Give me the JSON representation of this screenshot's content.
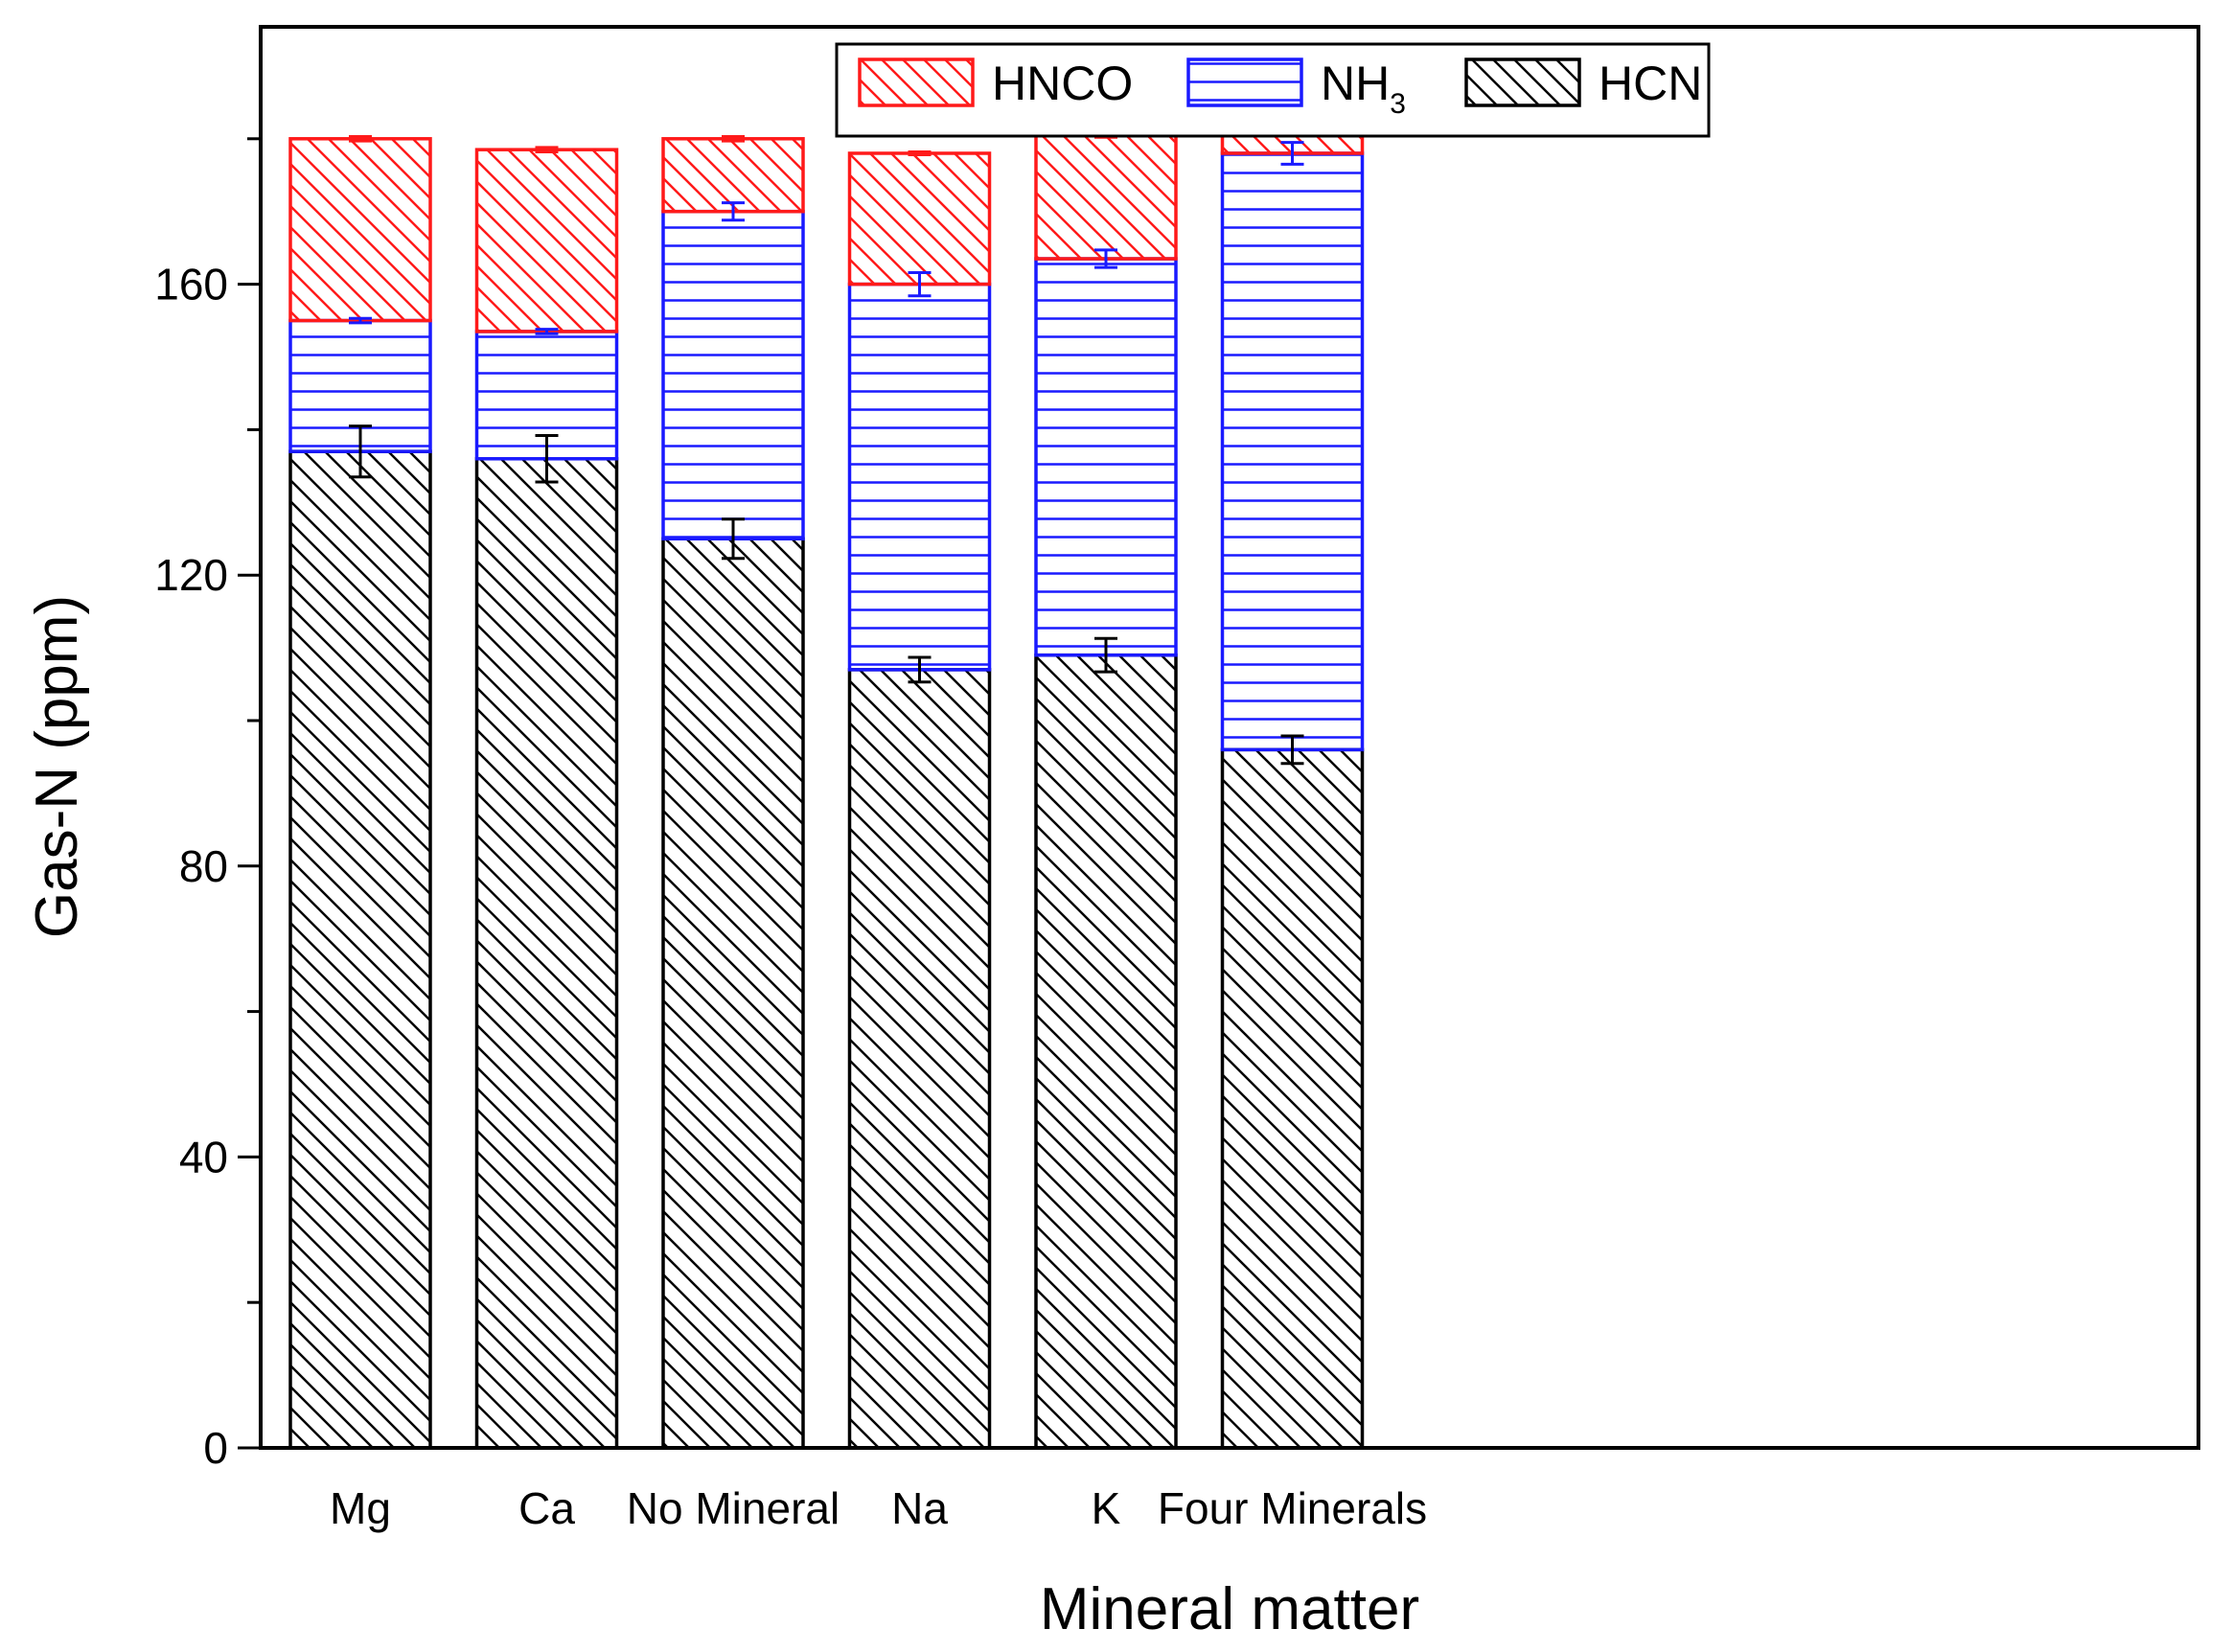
{
  "chart_data": {
    "type": "bar",
    "stacked": true,
    "title": "",
    "xlabel": "Mineral matter",
    "ylabel": "Gas-N (ppm)",
    "ylim": [
      0,
      200
    ],
    "yticks": [
      0,
      40,
      80,
      120,
      160
    ],
    "categories": [
      "Mg",
      "Ca",
      "No Mineral",
      "Na",
      "K",
      "Four Minerals"
    ],
    "series": [
      {
        "name": "HCN",
        "legend": {
          "main": "HCN",
          "sub": ""
        },
        "color": "#000000",
        "pattern": "diagonal",
        "values": [
          137,
          136,
          125,
          107,
          109,
          96
        ],
        "errors": [
          3.5,
          3.2,
          2.7,
          1.7,
          2.3,
          1.9
        ]
      },
      {
        "name": "NH3",
        "legend": {
          "main": "NH",
          "sub": "3"
        },
        "color": "#1a1aff",
        "pattern": "horizontal",
        "values": [
          18,
          17.5,
          45,
          53,
          54.5,
          82
        ],
        "errors": [
          0.3,
          0.3,
          1.2,
          1.6,
          1.2,
          1.5
        ]
      },
      {
        "name": "HNCO",
        "legend": {
          "main": "HNCO",
          "sub": ""
        },
        "color": "#ff1a1a",
        "pattern": "diagonal",
        "values": [
          25,
          25,
          10,
          18,
          17,
          3.5
        ],
        "errors": [
          0.3,
          0.3,
          0.3,
          0.2,
          0.3,
          0.3
        ]
      }
    ],
    "legend_order": [
      "HNCO",
      "NH3",
      "HCN"
    ],
    "legend_position": "top-center",
    "grid": false
  }
}
